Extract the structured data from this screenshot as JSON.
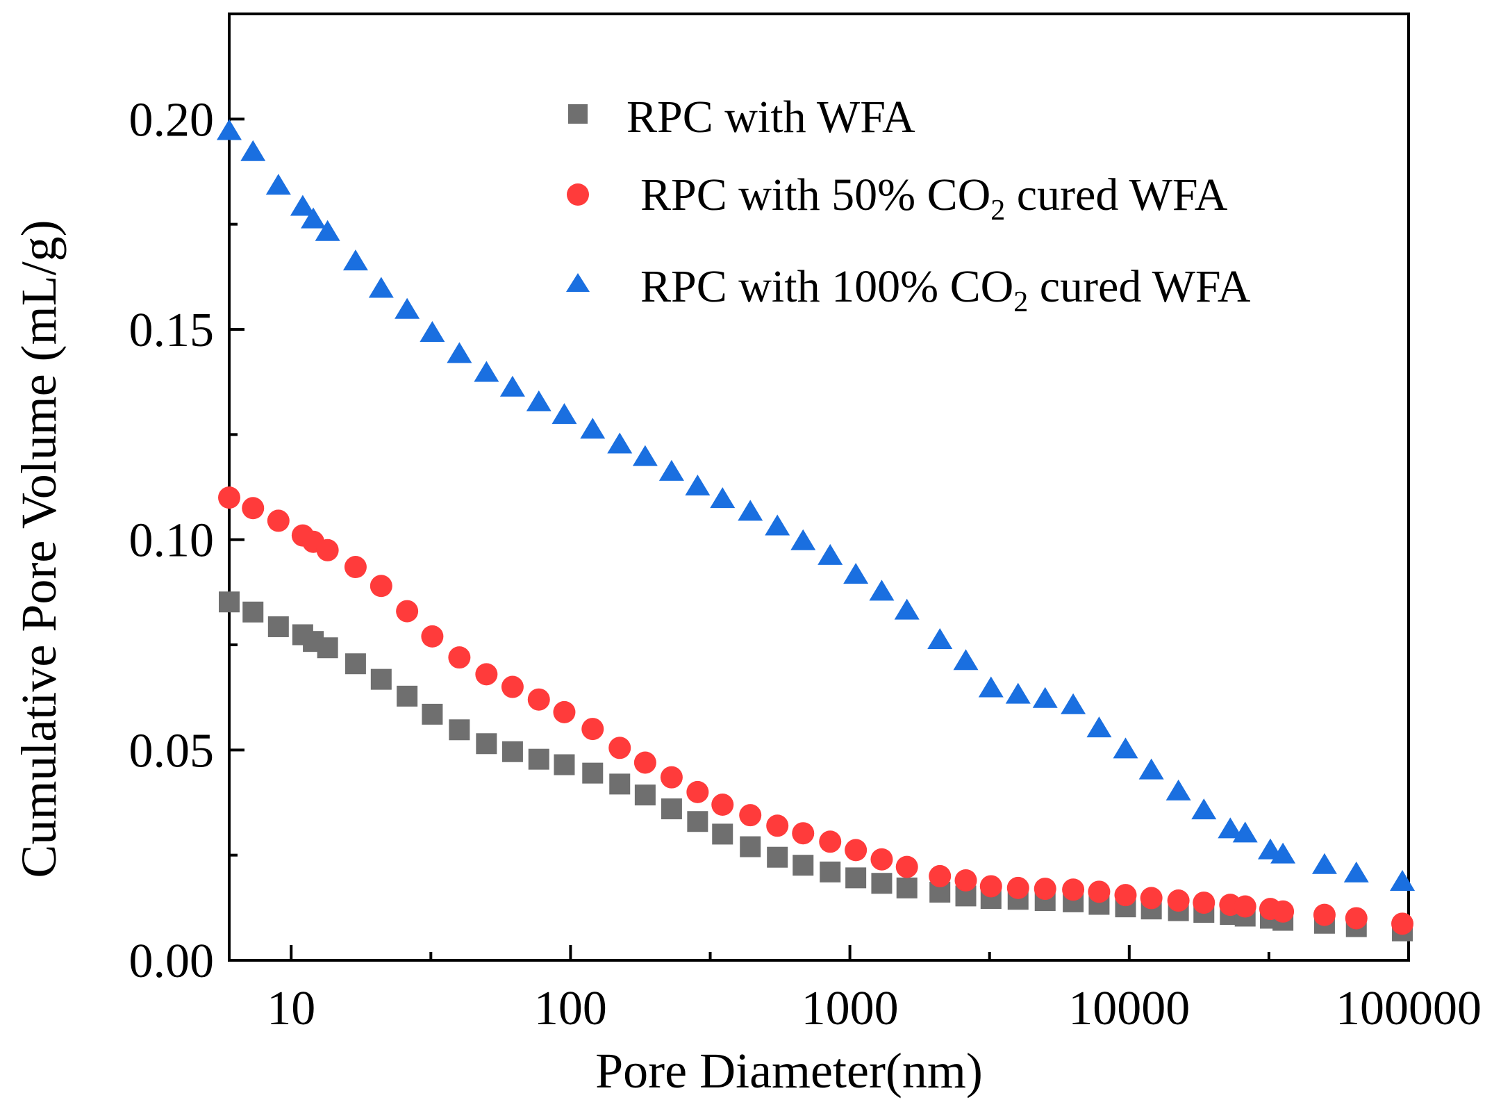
{
  "colors": {
    "series_gray": "#6f6f6f",
    "series_red": "#ff3b3b",
    "series_blue": "#1a6fe0",
    "axis": "#000000",
    "background": "#ffffff"
  },
  "chart_data": {
    "type": "scatter",
    "title": "",
    "xlabel": "Pore Diameter(nm)",
    "ylabel": "Cumulative Pore Volume  (mL/g)",
    "xscale": "log",
    "xlim": [
      6,
      100000
    ],
    "ylim": [
      0,
      0.225
    ],
    "xticks": [
      10,
      100,
      1000,
      10000,
      100000
    ],
    "xtick_labels": [
      "10",
      "100",
      "1000",
      "10000",
      "100000"
    ],
    "yticks": [
      0.0,
      0.05,
      0.1,
      0.15,
      0.2
    ],
    "ytick_labels": [
      "0.00",
      "0.05",
      "0.10",
      "0.15",
      "0.20"
    ],
    "y_minor_ticks": [
      0.025,
      0.075,
      0.125,
      0.175,
      0.225
    ],
    "legend_position": "top-center",
    "x": [
      6,
      7.3,
      9,
      11,
      12,
      13.5,
      17,
      21,
      26,
      32,
      40,
      50,
      62,
      77,
      95,
      120,
      150,
      185,
      230,
      285,
      350,
      440,
      550,
      680,
      850,
      1050,
      1300,
      1600,
      2100,
      2600,
      3200,
      4000,
      5000,
      6300,
      7800,
      9700,
      12000,
      15000,
      18500,
      23000,
      26000,
      32000,
      35500,
      50000,
      65000,
      95000
    ],
    "series": [
      {
        "name": "RPC with WFA",
        "marker": "square",
        "values": [
          0.0852,
          0.0828,
          0.0793,
          0.0774,
          0.0758,
          0.0743,
          0.0705,
          0.0668,
          0.0628,
          0.0585,
          0.0548,
          0.0515,
          0.0496,
          0.0478,
          0.0465,
          0.0445,
          0.0419,
          0.0393,
          0.036,
          0.033,
          0.03,
          0.027,
          0.0245,
          0.0226,
          0.021,
          0.0196,
          0.0183,
          0.0172,
          0.0162,
          0.0153,
          0.0147,
          0.0145,
          0.0142,
          0.0139,
          0.0133,
          0.0127,
          0.0122,
          0.0118,
          0.0114,
          0.0109,
          0.0105,
          0.01,
          0.0095,
          0.0088,
          0.008,
          0.007
        ]
      },
      {
        "name_prefix": "RPC with 50% CO",
        "name_sub": "2",
        "name_suffix": " cured WFA",
        "marker": "circle",
        "values": [
          0.11,
          0.1075,
          0.1045,
          0.101,
          0.0995,
          0.0975,
          0.0935,
          0.089,
          0.083,
          0.077,
          0.072,
          0.068,
          0.065,
          0.062,
          0.059,
          0.055,
          0.0505,
          0.047,
          0.0435,
          0.04,
          0.037,
          0.0345,
          0.032,
          0.0302,
          0.0282,
          0.0262,
          0.024,
          0.0222,
          0.02,
          0.019,
          0.0176,
          0.0172,
          0.017,
          0.0168,
          0.0163,
          0.0155,
          0.0148,
          0.0142,
          0.0137,
          0.0132,
          0.0128,
          0.0122,
          0.0116,
          0.0108,
          0.01,
          0.0087
        ]
      },
      {
        "name_prefix": "RPC with 100% CO",
        "name_sub": "2",
        "name_suffix": "  cured WFA",
        "marker": "triangle",
        "values": [
          0.197,
          0.192,
          0.184,
          0.179,
          0.176,
          0.173,
          0.166,
          0.1595,
          0.1545,
          0.149,
          0.144,
          0.1395,
          0.136,
          0.1325,
          0.1295,
          0.126,
          0.1225,
          0.1195,
          0.116,
          0.1125,
          0.1095,
          0.1065,
          0.103,
          0.0995,
          0.096,
          0.0915,
          0.0875,
          0.083,
          0.076,
          0.071,
          0.0645,
          0.063,
          0.062,
          0.0605,
          0.055,
          0.05,
          0.045,
          0.04,
          0.0355,
          0.031,
          0.03,
          0.026,
          0.025,
          0.0225,
          0.0205,
          0.0185
        ]
      }
    ]
  }
}
